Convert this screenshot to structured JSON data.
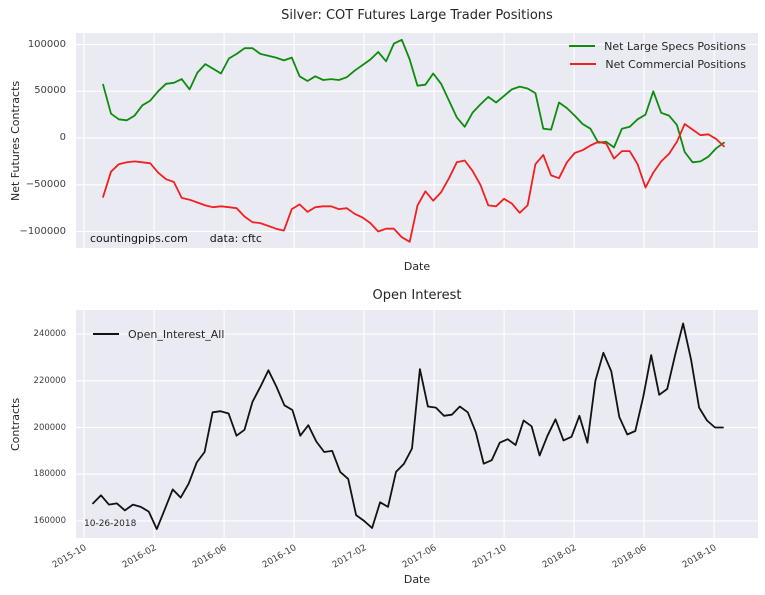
{
  "figure": {
    "background": "#ffffff",
    "plot_background": "#eaeaf2",
    "grid_color": "#ffffff"
  },
  "top_chart": {
    "title": "Silver: COT Futures Large Trader Positions",
    "ylabel": "Net Futures Contracts",
    "xlabel": "Date",
    "watermark": "countingpips.com",
    "source_note": "data: cftc"
  },
  "bottom_chart": {
    "title": "Open Interest",
    "ylabel": "Contracts",
    "xlabel": "Date",
    "annotation": "10-26-2018"
  },
  "chart_data": [
    {
      "type": "line",
      "title": "Silver: COT Futures Large Trader Positions",
      "xlabel": "Date",
      "ylabel": "Net Futures Contracts",
      "grid": true,
      "legend_position": "upper right",
      "x_unit": "months since 2015-10 (weekly CFTC COT data, ~2015-11 to 2018-10-26)",
      "xlim": [
        -0.46,
        38.51
      ],
      "ylim": [
        -117600,
        112300
      ],
      "y_ticks": [
        100000,
        50000,
        0,
        -50000,
        -100000
      ],
      "x_ticks": {
        "positions": [
          0,
          4,
          8,
          12,
          16,
          20,
          24,
          28,
          32,
          36
        ],
        "labels": [
          "",
          "",
          "",
          "",
          "",
          "",
          "",
          "",
          "",
          ""
        ],
        "tick_labels_visible": false
      },
      "series": [
        {
          "name": "Net Large Specs Positions",
          "color": "#0d8c0d",
          "t_start": 1.09,
          "t_end": 36.57,
          "values": [
            57000,
            26000,
            20000,
            19000,
            24000,
            35000,
            40000,
            50000,
            58000,
            59000,
            63000,
            52000,
            70000,
            79000,
            74000,
            69000,
            85000,
            90000,
            96000,
            96000,
            90000,
            88000,
            86000,
            83000,
            86000,
            66000,
            61000,
            66000,
            62000,
            63000,
            62000,
            65000,
            72000,
            78000,
            84000,
            92000,
            82000,
            101000,
            105000,
            84000,
            56000,
            57000,
            69000,
            58000,
            40000,
            22000,
            12000,
            27000,
            36000,
            44000,
            38000,
            45000,
            52000,
            55000,
            53000,
            48000,
            10000,
            9000,
            38000,
            32000,
            24000,
            15000,
            10000,
            -5000,
            -4000,
            -10000,
            10000,
            12000,
            20000,
            25000,
            50000,
            27000,
            24000,
            14000,
            -15000,
            -26000,
            -25000,
            -20000,
            -11000,
            -5000
          ]
        },
        {
          "name": "Net Commercial Positions",
          "color": "#f22020",
          "t_start": 1.09,
          "t_end": 36.57,
          "values": [
            -63000,
            -36000,
            -28000,
            -26000,
            -25000,
            -26000,
            -27000,
            -37000,
            -44000,
            -47000,
            -64000,
            -66000,
            -69000,
            -72000,
            -74000,
            -73000,
            -74000,
            -75000,
            -84000,
            -90000,
            -91000,
            -94000,
            -97000,
            -99000,
            -76000,
            -71000,
            -79000,
            -74000,
            -73000,
            -73000,
            -76000,
            -75000,
            -81000,
            -85000,
            -91000,
            -100000,
            -97000,
            -97000,
            -106000,
            -111000,
            -72000,
            -57000,
            -67000,
            -58000,
            -43000,
            -26000,
            -24000,
            -35000,
            -50000,
            -72000,
            -73000,
            -65000,
            -70000,
            -80000,
            -72000,
            -28000,
            -18000,
            -40000,
            -43000,
            -26000,
            -16000,
            -13000,
            -8000,
            -4000,
            -6000,
            -22000,
            -14000,
            -14000,
            -28000,
            -53000,
            -37000,
            -25000,
            -17000,
            -4000,
            15000,
            9000,
            3000,
            4000,
            -1000,
            -9000
          ]
        }
      ]
    },
    {
      "type": "line",
      "title": "Open Interest",
      "xlabel": "Date",
      "ylabel": "Contracts",
      "grid": true,
      "legend_position": "upper left",
      "x_unit": "months since 2015-10",
      "xlim": [
        -0.46,
        38.51
      ],
      "ylim": [
        152700,
        250300
      ],
      "y_ticks": [
        240000,
        220000,
        200000,
        180000,
        160000
      ],
      "x_ticks": {
        "positions": [
          0,
          4,
          8,
          12,
          16,
          20,
          24,
          28,
          32,
          36
        ],
        "labels": [
          "2015-10",
          "2016-02",
          "2016-06",
          "2016-10",
          "2017-02",
          "2017-06",
          "2017-10",
          "2018-02",
          "2018-06",
          "2018-10"
        ],
        "rotation": -30,
        "tick_labels_visible": true
      },
      "series": [
        {
          "name": "Open_Interest_All",
          "color": "#121212",
          "t_start": 0.51,
          "t_end": 36.51,
          "values": [
            167500,
            171000,
            167000,
            167500,
            164500,
            167000,
            166000,
            164000,
            156500,
            165000,
            173500,
            170000,
            176000,
            185000,
            189500,
            206500,
            207000,
            206000,
            196500,
            199000,
            211000,
            217500,
            224500,
            217500,
            209500,
            207500,
            196500,
            201000,
            194000,
            189500,
            190000,
            181000,
            178000,
            162500,
            160000,
            157000,
            168000,
            166000,
            181000,
            184500,
            191000,
            225000,
            209000,
            208500,
            205000,
            205500,
            209000,
            206500,
            198000,
            184500,
            186000,
            193500,
            195000,
            192500,
            203000,
            200500,
            188000,
            196500,
            203500,
            194500,
            196000,
            205000,
            193500,
            220000,
            232000,
            224000,
            204500,
            197000,
            198500,
            213000,
            231000,
            214000,
            216500,
            231000,
            244500,
            229000,
            208500,
            203000,
            200000,
            200000
          ]
        }
      ]
    }
  ]
}
